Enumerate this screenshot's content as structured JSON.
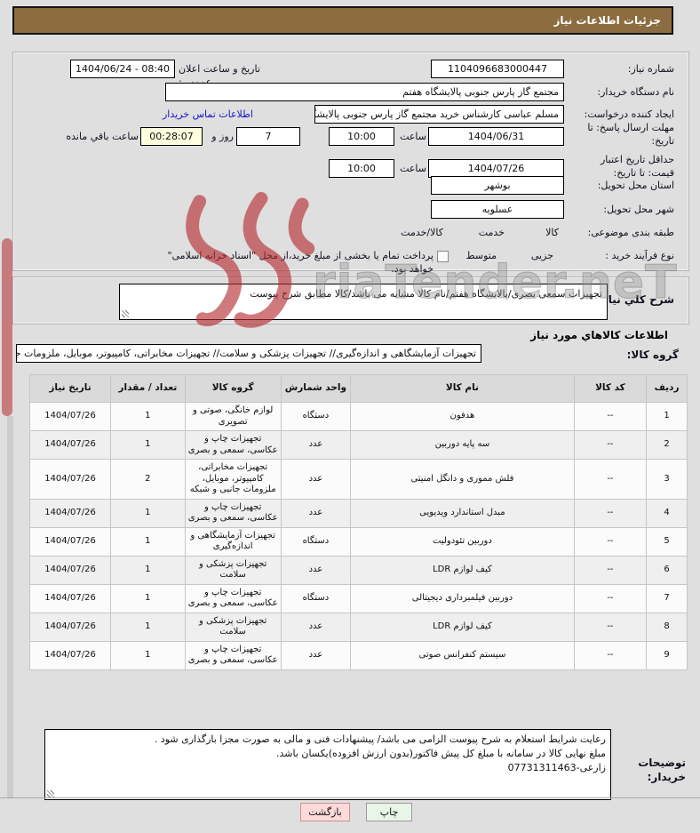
{
  "title_bar": {
    "title": "جزئیات اطلاعات نیاز"
  },
  "watermark": {
    "text": "riaTender.neT",
    "logo": "aria-tender-logo",
    "color": "#b5282e"
  },
  "form": {
    "need_number": {
      "label": "شماره نیاز:",
      "value": "1104096683000447"
    },
    "announce": {
      "label": "تاریخ و ساعت اعلان عمومي:",
      "value": "1404/06/24 - 08:40"
    },
    "buyer_org": {
      "label": "نام دستگاه خریدار:",
      "value": "مجتمع گاز پارس جنوبی  پالایشگاه هفتم"
    },
    "requester": {
      "label": "ایجاد کننده درخواست:",
      "value": "مسلم عباسی کارشناس خرید مجتمع گاز پارس جنوبی  پالایشگاه هفتم",
      "contact_link": "اطلاعات تماس خریدار"
    },
    "deadline": {
      "label": "مهلت ارسال پاسخ: تا تاریخ:",
      "date": "1404/06/31",
      "hour_label": "ساعت",
      "time": "10:00",
      "days": "7",
      "days_label": "روز و",
      "countdown": "00:28:07",
      "countdown_label": "ساعت باقي مانده"
    },
    "price_validity": {
      "label": "حداقل تاریخ اعتبار قیمت: تا تاریخ:",
      "date": "1404/07/26",
      "hour_label": "ساعت",
      "time": "10:00"
    },
    "province": {
      "label": "استان محل تحویل:",
      "value": "بوشهر"
    },
    "city": {
      "label": "شهر محل تحویل:",
      "value": "عسلویه"
    },
    "classification": {
      "label": "طبقه بندی موضوعی:",
      "options": [
        {
          "label": "کالا",
          "selected": true
        },
        {
          "label": "خدمت",
          "selected": false
        },
        {
          "label": "کالا/خدمت",
          "selected": false
        }
      ]
    },
    "process_type": {
      "label": "نوع فرآیند خرید :",
      "options": [
        {
          "label": "جزیی",
          "selected": false
        },
        {
          "label": "متوسط",
          "selected": true
        }
      ],
      "checkbox_label": "پرداخت تمام یا بخشی از مبلغ خرید،از محل \"اسناد خزانه اسلامی\" خواهد بود.",
      "checkbox_checked": false
    }
  },
  "general_desc": {
    "label": "شرح كلي نياز:",
    "value": "تجهیزات سمعی بصری/پالایشگاه هفتم/نام کالا مشابه می باشد/کالا مطابق شرح پیوست"
  },
  "items_section": {
    "title": "اطلاعات کالاهاي مورد نیاز",
    "group_label": "گروه کالا:",
    "group_value": "تجهیزات آزمایشگاهی و اندازه‌گیری// تجهیزات پزشکی و سلامت// تجهیزات مخابراتی، کامپیوتر، موبایل، ملزومات جانبی و شبکه"
  },
  "table": {
    "headers": [
      "ردیف",
      "کد کالا",
      "نام کالا",
      "واحد شمارش",
      "گروه کالا",
      "تعداد / مقدار",
      "تاریخ نیاز"
    ],
    "rows": [
      [
        "1",
        "--",
        "هدفون",
        "دستگاه",
        "لوازم خانگی، صوتی و تصویری",
        "1",
        "1404/07/26"
      ],
      [
        "2",
        "--",
        "سه پایه دوربین",
        "عدد",
        "تجهیزات چاپ و عکاسی، سمعی و بصری",
        "1",
        "1404/07/26"
      ],
      [
        "3",
        "--",
        "فلش مموری و دانگل امنیتی",
        "عدد",
        "تجهیزات مخابراتی، کامپیوتر، موبایل، ملزومات جانبی و شبکه",
        "2",
        "1404/07/26"
      ],
      [
        "4",
        "--",
        "مبدل استاندارد ویدیویی",
        "عدد",
        "تجهیزات چاپ و عکاسی، سمعی و بصری",
        "1",
        "1404/07/26"
      ],
      [
        "5",
        "--",
        "دوربین تئودولیت",
        "دستگاه",
        "تجهیزات آزمایشگاهی و اندازه‌گیری",
        "1",
        "1404/07/26"
      ],
      [
        "6",
        "--",
        "کیف لوازم LDR",
        "عدد",
        "تجهیزات پزشکی و سلامت",
        "1",
        "1404/07/26"
      ],
      [
        "7",
        "--",
        "دوربین فیلمبرداری دیجیتالی",
        "دستگاه",
        "تجهیزات چاپ و عکاسی، سمعی و بصری",
        "1",
        "1404/07/26"
      ],
      [
        "8",
        "--",
        "کیف لوازم LDR",
        "عدد",
        "تجهیزات پزشکی و سلامت",
        "1",
        "1404/07/26"
      ],
      [
        "9",
        "--",
        "سیستم کنفرانس صوتی",
        "عدد",
        "تجهیزات چاپ و عکاسی، سمعی و بصری",
        "1",
        "1404/07/26"
      ]
    ]
  },
  "buyer_notes": {
    "label": "توضیحات خریدار:",
    "lines": [
      "رعایت شرایط استعلام به شرح پیوست الزامی می باشد/ پیشنهادات فنی و مالی به صورت مجزا بارگذاری شود .",
      "مبلغ نهایی کالا در سامانه با مبلغ کل پیش فاکتور(بدون ارزش افزوده)یکسان باشد."
    ],
    "phone_line": "07731311463-زارعی"
  },
  "footer": {
    "print": "چاپ",
    "back": "بازگشت"
  },
  "colors": {
    "titlebar": "#8c6c41",
    "countdown_bg": "#ffffe0",
    "back_btn": "#fcdada",
    "print_btn": "#e7f6e7",
    "link": "#1414cc"
  }
}
